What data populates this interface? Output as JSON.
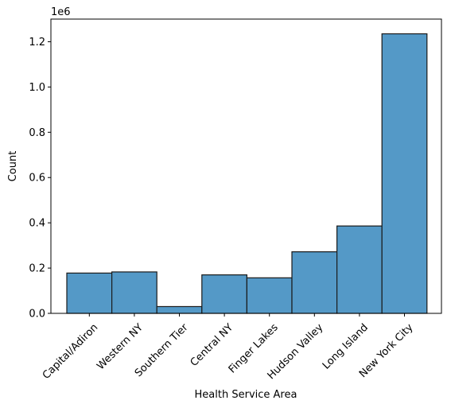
{
  "chart_data": {
    "type": "bar",
    "title": "",
    "xlabel": "Health Service Area",
    "ylabel": "Count",
    "y_offset_label": "1e6",
    "categories": [
      "Capital/Adiron",
      "Western NY",
      "Southern Tier",
      "Central NY",
      "Finger Lakes",
      "Hudson Valley",
      "Long Island",
      "New York City"
    ],
    "values": [
      178000,
      183000,
      30000,
      170000,
      157000,
      272000,
      386000,
      1235000
    ],
    "ylim": [
      0,
      1300000
    ],
    "yticks": [
      0,
      200000,
      400000,
      600000,
      800000,
      1000000,
      1200000
    ],
    "ytick_labels": [
      "0.0",
      "0.2",
      "0.4",
      "0.6",
      "0.8",
      "1.0",
      "1.2"
    ],
    "bar_color": "#5499c7",
    "edge_color": "#1a1a1a",
    "grid": false
  }
}
